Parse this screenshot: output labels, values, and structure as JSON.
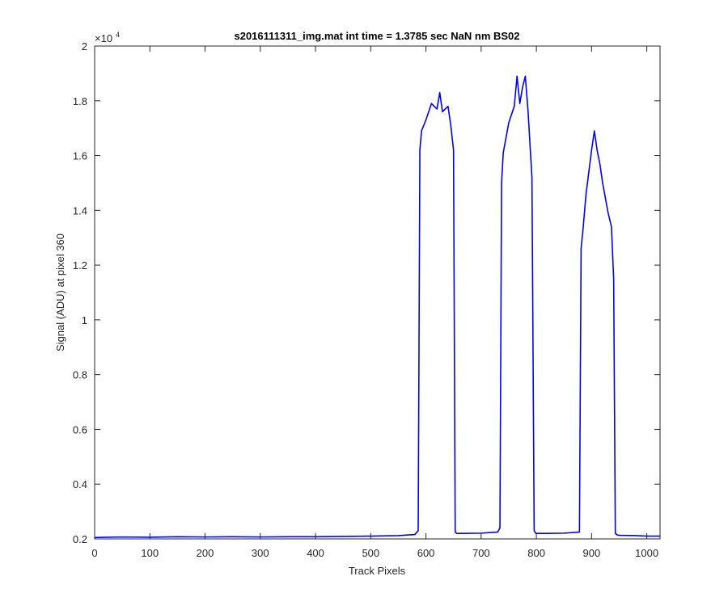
{
  "chart_data": {
    "type": "line",
    "title": "s2016111311_img.mat int time = 1.3785 sec  NaN nm BS02",
    "xlabel": "Track Pixels",
    "ylabel": "Signal (ADU) at pixel 360",
    "y_exponent_label": "×10",
    "y_exponent_power": "4",
    "xlim": [
      0,
      1024
    ],
    "ylim": [
      2000,
      20000
    ],
    "y_scale_factor": 10000,
    "grid": false,
    "legend": "none",
    "line_color": "#0000ff",
    "x_ticks": [
      0,
      100,
      200,
      300,
      400,
      500,
      600,
      700,
      800,
      900,
      1000
    ],
    "x_tick_labels": [
      "0",
      "100",
      "200",
      "300",
      "400",
      "500",
      "600",
      "700",
      "800",
      "900",
      "1000"
    ],
    "y_ticks": [
      2000,
      4000,
      6000,
      8000,
      10000,
      12000,
      14000,
      16000,
      18000,
      20000
    ],
    "y_tick_labels": [
      "0.2",
      "0.4",
      "0.6",
      "0.8",
      "1",
      "1.2",
      "1.4",
      "1.6",
      "1.8",
      "2"
    ],
    "series": [
      {
        "x": [
          0,
          50,
          100,
          150,
          200,
          250,
          300,
          350,
          400,
          450,
          500,
          550,
          580,
          586,
          589,
          592,
          600,
          610,
          620,
          625,
          630,
          640,
          645,
          650,
          653,
          656,
          665,
          700,
          730,
          734,
          737,
          740,
          750,
          760,
          765,
          770,
          775,
          780,
          785,
          792,
          796,
          799,
          802,
          820,
          850,
          878,
          881,
          884,
          890,
          900,
          905,
          910,
          915,
          920,
          930,
          936,
          940,
          943,
          946,
          950,
          980,
          1000,
          1024
        ],
        "y": [
          2050,
          2070,
          2060,
          2080,
          2070,
          2080,
          2070,
          2080,
          2080,
          2090,
          2100,
          2120,
          2160,
          2300,
          16200,
          16900,
          17300,
          17900,
          17700,
          18300,
          17600,
          17800,
          17100,
          16200,
          2250,
          2200,
          2200,
          2210,
          2250,
          2400,
          15000,
          16100,
          17200,
          17800,
          18900,
          17900,
          18500,
          18900,
          17600,
          15200,
          2300,
          2200,
          2200,
          2200,
          2210,
          2250,
          12600,
          13200,
          14600,
          16200,
          16900,
          16200,
          15700,
          15000,
          13900,
          13400,
          11500,
          2200,
          2150,
          2130,
          2120,
          2100,
          2100
        ]
      }
    ]
  }
}
